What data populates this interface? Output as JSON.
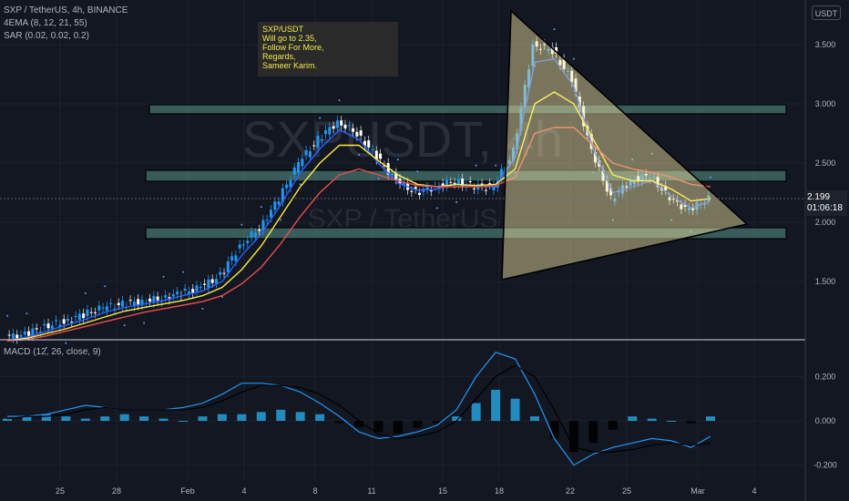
{
  "header": {
    "symbol_line": "SXP / TetherUS, 4h, BINANCE",
    "ema_line": "4EMA (8, 12, 21, 55)",
    "sar_line": "SAR (0.02, 0.02, 0.2)",
    "macd_line": "MACD (12, 26, close, 9)",
    "currency_button": "USDT"
  },
  "watermark": {
    "big": "SXPUSDT, 4h",
    "small": "SXP / TetherUS"
  },
  "note_text": "SXP/USDT\nWill go to 2.35,\nFollow For More,\nRegards,\nSameer Karim.",
  "price_tag": {
    "price": "2.199",
    "countdown": "01:06:18"
  },
  "colors": {
    "background": "#131722",
    "candle_up": "#2196f3",
    "candle_down": "#ffffff",
    "ema8": "#2962ff",
    "ema12": "#ffeb3b",
    "ema21": "#e84e4e",
    "ema55": "#b71c1c",
    "macd": "#2196f3",
    "signal": "#000000",
    "triangle_fill": "#f5e9a3",
    "zone_fill": "#4a7a74"
  },
  "chart_data": [
    {
      "type": "line",
      "panel": "price",
      "y_ticks": [
        "3.500",
        "3.000",
        "2.500",
        "2.000",
        "1.500"
      ],
      "x_ticks": [
        "25",
        "28",
        "Feb",
        "4",
        "8",
        "11",
        "15",
        "18",
        "22",
        "25",
        "Mar",
        "4"
      ],
      "ylim": [
        1.0,
        3.8
      ],
      "series": [
        {
          "name": "close",
          "values": [
            1.03,
            1.05,
            1.12,
            1.16,
            1.22,
            1.28,
            1.31,
            1.33,
            1.36,
            1.4,
            1.45,
            1.55,
            1.8,
            1.95,
            2.2,
            2.5,
            2.7,
            2.85,
            2.75,
            2.55,
            2.35,
            2.25,
            2.3,
            2.35,
            2.3,
            2.3,
            2.6,
            3.5,
            3.45,
            3.2,
            2.6,
            2.2,
            2.35,
            2.4,
            2.2,
            2.1,
            2.2
          ]
        },
        {
          "name": "ema8",
          "values": [
            1.0,
            1.03,
            1.08,
            1.13,
            1.18,
            1.24,
            1.28,
            1.31,
            1.34,
            1.38,
            1.42,
            1.5,
            1.72,
            1.9,
            2.15,
            2.42,
            2.62,
            2.78,
            2.7,
            2.5,
            2.33,
            2.27,
            2.28,
            2.32,
            2.3,
            2.3,
            2.55,
            3.35,
            3.38,
            3.15,
            2.62,
            2.25,
            2.3,
            2.35,
            2.22,
            2.12,
            2.18
          ]
        },
        {
          "name": "ema12",
          "values": [
            1.0,
            1.02,
            1.06,
            1.1,
            1.15,
            1.2,
            1.25,
            1.28,
            1.31,
            1.34,
            1.38,
            1.45,
            1.6,
            1.8,
            2.05,
            2.3,
            2.5,
            2.65,
            2.65,
            2.52,
            2.4,
            2.32,
            2.3,
            2.32,
            2.31,
            2.32,
            2.45,
            3.0,
            3.1,
            3.0,
            2.7,
            2.4,
            2.35,
            2.35,
            2.28,
            2.18,
            2.2
          ]
        },
        {
          "name": "ema21",
          "values": [
            1.0,
            1.01,
            1.04,
            1.08,
            1.12,
            1.16,
            1.2,
            1.24,
            1.27,
            1.3,
            1.33,
            1.38,
            1.48,
            1.62,
            1.82,
            2.05,
            2.25,
            2.4,
            2.45,
            2.4,
            2.35,
            2.31,
            2.3,
            2.3,
            2.3,
            2.31,
            2.38,
            2.75,
            2.8,
            2.8,
            2.65,
            2.5,
            2.45,
            2.42,
            2.38,
            2.32,
            2.3
          ]
        }
      ]
    },
    {
      "type": "bar",
      "panel": "macd",
      "y_ticks": [
        "0.200",
        "0.000",
        "-0.200"
      ],
      "ylim": [
        -0.26,
        0.32
      ],
      "series": [
        {
          "name": "histogram",
          "values": [
            0.01,
            0.02,
            0.03,
            0.02,
            0.01,
            0.02,
            0.03,
            0.02,
            0.01,
            0.0,
            0.02,
            0.03,
            0.03,
            0.04,
            0.05,
            0.04,
            0.03,
            -0.01,
            -0.03,
            -0.05,
            -0.06,
            -0.03,
            -0.01,
            0.02,
            0.08,
            0.14,
            0.1,
            0.02,
            -0.08,
            -0.14,
            -0.1,
            -0.04,
            0.02,
            0.01,
            0.0,
            -0.01,
            0.02
          ]
        },
        {
          "name": "macd",
          "values": [
            0.02,
            0.02,
            0.03,
            0.05,
            0.07,
            0.06,
            0.05,
            0.05,
            0.05,
            0.06,
            0.08,
            0.12,
            0.17,
            0.17,
            0.16,
            0.13,
            0.08,
            0.02,
            -0.05,
            -0.08,
            -0.07,
            -0.05,
            -0.02,
            0.05,
            0.2,
            0.31,
            0.28,
            0.12,
            -0.08,
            -0.2,
            -0.15,
            -0.12,
            -0.1,
            -0.08,
            -0.09,
            -0.12,
            -0.07
          ]
        },
        {
          "name": "signal",
          "values": [
            0.01,
            0.02,
            0.02,
            0.03,
            0.05,
            0.06,
            0.05,
            0.05,
            0.05,
            0.05,
            0.06,
            0.09,
            0.13,
            0.16,
            0.16,
            0.15,
            0.12,
            0.07,
            0.0,
            -0.06,
            -0.08,
            -0.07,
            -0.05,
            0.0,
            0.1,
            0.2,
            0.25,
            0.2,
            0.05,
            -0.12,
            -0.14,
            -0.14,
            -0.13,
            -0.11,
            -0.1,
            -0.11,
            -0.1
          ]
        }
      ]
    }
  ]
}
